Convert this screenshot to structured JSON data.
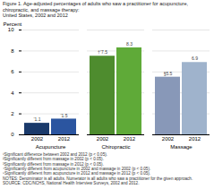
{
  "chart_data": {
    "type": "bar",
    "title": "Figure 1. Age-adjusted percentages of adults who saw a practitioner for acupuncture, chiropractic, and massage therapy:",
    "subtitle": "United States, 2002 and 2012",
    "categories": [
      "Acupuncture",
      "Chiropractic",
      "Massage"
    ],
    "series": [
      {
        "name": "2002",
        "values": [
          1.1,
          7.5,
          5.5
        ],
        "value_labels": [
          "’1.1",
          "†’7.5",
          "§5.5"
        ],
        "colors": [
          "#1a3a6b",
          "#4e8c2e",
          "#8898b8"
        ]
      },
      {
        "name": "2012",
        "values": [
          1.5,
          8.3,
          6.9
        ],
        "value_labels": [
          "’1.5",
          "8.3",
          "6.9"
        ],
        "colors": [
          "#2b55a0",
          "#5faa38",
          "#9fb3cc"
        ]
      }
    ],
    "ylabel": "Percent",
    "ylim": [
      0,
      10
    ],
    "yticks": [
      0,
      2,
      4,
      6,
      8,
      10
    ],
    "grid": true,
    "data_labels": true,
    "annotations": [
      "¹Significant difference between 2002 and 2012 (p < 0.05).",
      "²Significantly different from massage in 2002 (p < 0.05).",
      "³Significantly different from massage in 2012 (p < 0.05).",
      "⁴Significantly different from acupuncture in 2002 and massage in 2002 (p < 0.05).",
      "⁵Significantly different from acupuncture in 2012 and massage in 2012 (p < 0.05).",
      "NOTES: Denominator is all adults. Numerator is all adults who saw a practitioner for the given approach.",
      "SOURCE: CDC/NCHS, National Health Interview Surveys, 2002 and 2012."
    ]
  }
}
